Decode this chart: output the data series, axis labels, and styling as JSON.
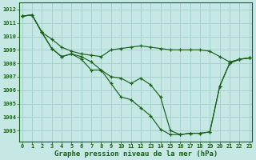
{
  "title": "Graphe pression niveau de la mer (hPa)",
  "xlabel_hours": [
    0,
    1,
    2,
    3,
    4,
    5,
    6,
    7,
    8,
    9,
    10,
    11,
    12,
    13,
    14,
    15,
    16,
    17,
    18,
    19,
    20,
    21,
    22,
    23
  ],
  "ylim": [
    1002.2,
    1012.5
  ],
  "yticks": [
    1003,
    1004,
    1005,
    1006,
    1007,
    1008,
    1009,
    1010,
    1011,
    1012
  ],
  "bg_color": "#c5e8e5",
  "grid_color": "#a8d0cc",
  "line_color": "#1a5f1a",
  "lines": [
    [
      1011.5,
      1011.6,
      1010.3,
      1009.8,
      1009.2,
      1008.9,
      1008.7,
      1008.6,
      1008.5,
      1009.0,
      1009.1,
      1009.2,
      1009.3,
      1009.2,
      1009.1,
      1009.0,
      1009.0,
      1009.0,
      1009.0,
      1008.9,
      1008.5,
      1008.1,
      1008.3,
      1008.4
    ],
    [
      1011.5,
      1011.6,
      1010.3,
      1009.1,
      1008.5,
      1008.7,
      1008.5,
      1008.1,
      1007.5,
      1007.0,
      1006.9,
      1006.5,
      1006.9,
      1006.4,
      1005.5,
      1003.0,
      1002.7,
      1002.8,
      1002.8,
      1002.9,
      1006.3,
      1008.0,
      1008.3,
      1008.4
    ],
    [
      1011.5,
      1011.6,
      1010.3,
      1009.1,
      1008.5,
      1008.7,
      1008.3,
      1007.5,
      1007.5,
      1006.5,
      1005.5,
      1005.3,
      1004.7,
      1004.1,
      1003.1,
      1002.7,
      1002.7,
      1002.8,
      1002.8,
      1002.9,
      1006.3,
      1008.0,
      1008.3,
      1008.4
    ]
  ]
}
